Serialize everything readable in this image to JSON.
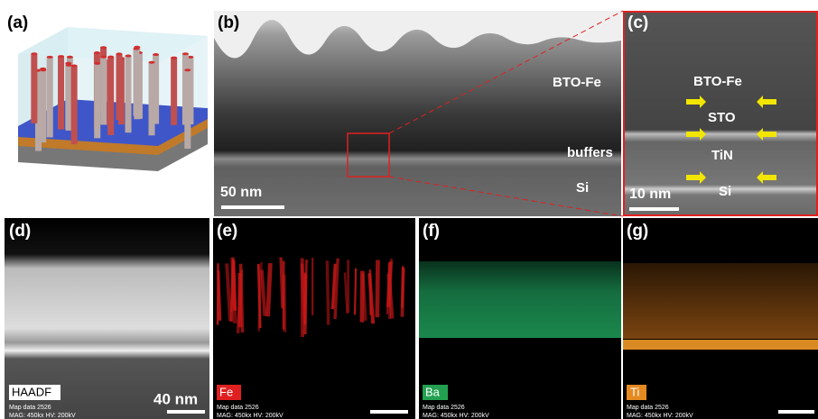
{
  "panels": [
    {
      "label": "(a)"
    },
    {
      "label": "(b)",
      "annotations": [
        "BTO-Fe",
        "buffers",
        "Si"
      ],
      "scale_bar": "50 nm"
    },
    {
      "label": "(c)",
      "annotations": [
        "BTO-Fe",
        "STO",
        "TiN",
        "Si"
      ],
      "scale_bar": "10 nm"
    },
    {
      "label": "(d)",
      "tag": "HAADF",
      "scale_bar": "40 nm",
      "footer": [
        "Map data 2526",
        "MAG: 450kx  HV: 200kV"
      ]
    },
    {
      "label": "(e)",
      "tag": "Fe",
      "footer": [
        "Map data 2526",
        "MAG: 450kx  HV: 200kV"
      ]
    },
    {
      "label": "(f)",
      "tag": "Ba",
      "footer": [
        "Map data 2526",
        "MAG: 450kx  HV: 200kV"
      ]
    },
    {
      "label": "(g)",
      "tag": "Ti",
      "footer": [
        "Map data 2526",
        "MAG: 450kx  HV: 200kV"
      ]
    }
  ]
}
